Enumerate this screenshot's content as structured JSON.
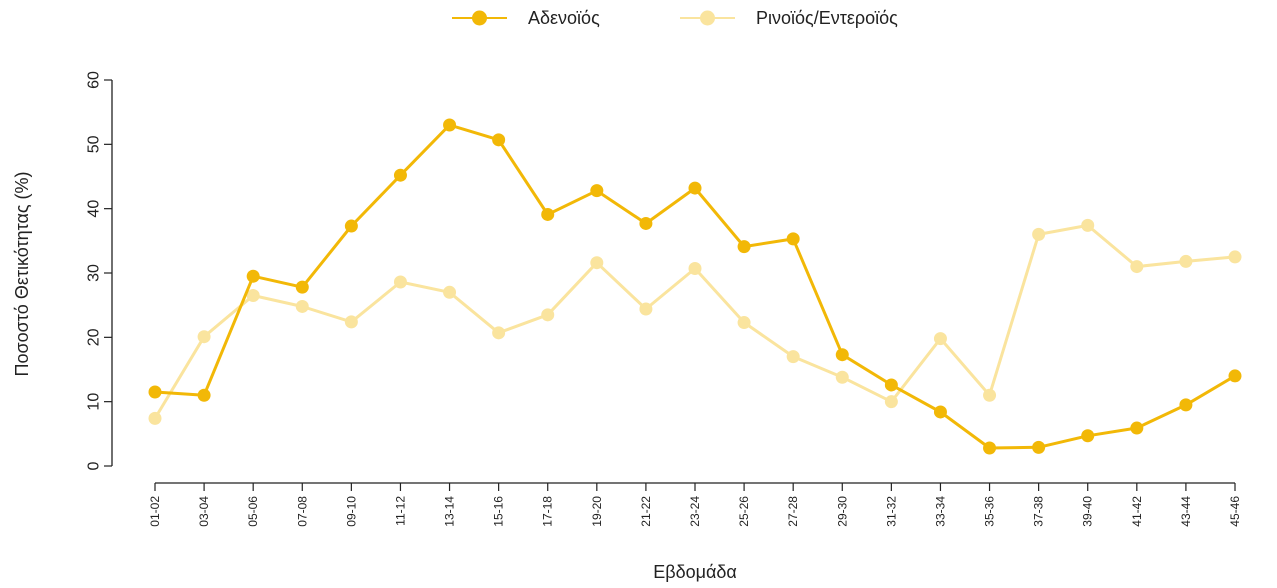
{
  "chart_data": {
    "type": "line",
    "categories": [
      "01-02",
      "03-04",
      "05-06",
      "07-08",
      "09-10",
      "11-12",
      "13-14",
      "15-16",
      "17-18",
      "19-20",
      "21-22",
      "23-24",
      "25-26",
      "27-28",
      "29-30",
      "31-32",
      "33-34",
      "35-36",
      "37-38",
      "39-40",
      "41-42",
      "43-44",
      "45-46"
    ],
    "series": [
      {
        "name": "Αδενοϊός",
        "color": "#F2B807",
        "values": [
          11.5,
          11.0,
          29.5,
          27.8,
          37.3,
          45.2,
          53.0,
          50.7,
          39.1,
          42.8,
          37.7,
          43.2,
          34.1,
          35.3,
          17.3,
          12.6,
          8.4,
          2.8,
          2.9,
          4.7,
          5.9,
          9.5,
          14.0
        ]
      },
      {
        "name": "Ρινοϊός/Εντεροϊός",
        "color": "#FAE49E",
        "values": [
          7.4,
          20.1,
          26.5,
          24.8,
          22.4,
          28.6,
          27.0,
          20.7,
          23.5,
          31.6,
          24.4,
          30.7,
          22.3,
          17.0,
          13.8,
          10.0,
          19.8,
          11.0,
          36.0,
          37.4,
          31.0,
          31.8,
          32.5
        ]
      }
    ],
    "xlabel": "Εβδομάδα",
    "ylabel": "Ποσοστό Θετικότητας (%)",
    "ylim": [
      0,
      60
    ],
    "yticks": [
      "0",
      "10",
      "20",
      "30",
      "40",
      "50",
      "60"
    ],
    "grid": false,
    "legend_position": "top-center"
  }
}
